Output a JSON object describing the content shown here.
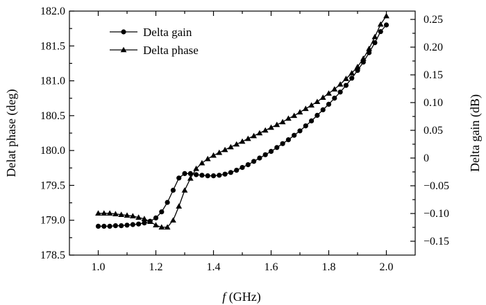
{
  "chart_data": {
    "type": "line",
    "xlabel_italic": "f",
    "xlabel_rest": " (GHz)",
    "ylabel_left": "Delat phase (deg)",
    "ylabel_right": "Delta gain (dB)",
    "xlim": [
      0.9,
      2.1
    ],
    "ylim_left": [
      178.5,
      182.0
    ],
    "ylim_right": [
      -0.175,
      0.265
    ],
    "x_ticks": [
      1.0,
      1.2,
      1.4,
      1.6,
      1.8,
      2.0
    ],
    "x_tick_labels": [
      "1.0",
      "1.2",
      "1.4",
      "1.6",
      "1.8",
      "2.0"
    ],
    "y_left_ticks": [
      178.5,
      179.0,
      179.5,
      180.0,
      180.5,
      181.0,
      181.5,
      182.0
    ],
    "y_left_tick_labels": [
      "178.5",
      "179.0",
      "179.5",
      "180.0",
      "180.5",
      "181.0",
      "181.5",
      "182.0"
    ],
    "y_right_ticks": [
      -0.15,
      -0.1,
      -0.05,
      0,
      0.05,
      0.1,
      0.15,
      0.2,
      0.25
    ],
    "y_right_tick_labels": [
      "−0.15",
      "−0.10",
      "−0.05",
      "0",
      "0.05",
      "0.10",
      "0.15",
      "0.20",
      "0.25"
    ],
    "grid": false,
    "legend_position": "top-left",
    "series": [
      {
        "name": "Delta gain",
        "marker": "circle",
        "axis": "right",
        "x": [
          1.0,
          1.02,
          1.04,
          1.06,
          1.08,
          1.1,
          1.12,
          1.14,
          1.16,
          1.18,
          1.2,
          1.22,
          1.24,
          1.26,
          1.28,
          1.3,
          1.32,
          1.34,
          1.36,
          1.38,
          1.4,
          1.42,
          1.44,
          1.46,
          1.48,
          1.5,
          1.52,
          1.54,
          1.56,
          1.58,
          1.6,
          1.62,
          1.64,
          1.66,
          1.68,
          1.7,
          1.72,
          1.74,
          1.76,
          1.78,
          1.8,
          1.82,
          1.84,
          1.86,
          1.88,
          1.9,
          1.92,
          1.94,
          1.96,
          1.98,
          2.0
        ],
        "y": [
          -0.123,
          -0.123,
          -0.123,
          -0.122,
          -0.122,
          -0.121,
          -0.12,
          -0.119,
          -0.117,
          -0.114,
          -0.108,
          -0.097,
          -0.08,
          -0.058,
          -0.036,
          -0.028,
          -0.028,
          -0.03,
          -0.031,
          -0.032,
          -0.032,
          -0.031,
          -0.029,
          -0.026,
          -0.022,
          -0.017,
          -0.012,
          -0.006,
          0.0,
          0.006,
          0.012,
          0.019,
          0.026,
          0.033,
          0.041,
          0.049,
          0.058,
          0.067,
          0.077,
          0.087,
          0.097,
          0.108,
          0.119,
          0.131,
          0.144,
          0.158,
          0.173,
          0.19,
          0.208,
          0.228,
          0.24
        ]
      },
      {
        "name": "Delta phase",
        "marker": "triangle",
        "axis": "left",
        "x": [
          1.0,
          1.02,
          1.04,
          1.06,
          1.08,
          1.1,
          1.12,
          1.14,
          1.16,
          1.18,
          1.2,
          1.22,
          1.24,
          1.26,
          1.28,
          1.3,
          1.32,
          1.34,
          1.36,
          1.38,
          1.4,
          1.42,
          1.44,
          1.46,
          1.48,
          1.5,
          1.52,
          1.54,
          1.56,
          1.58,
          1.6,
          1.62,
          1.64,
          1.66,
          1.68,
          1.7,
          1.72,
          1.74,
          1.76,
          1.78,
          1.8,
          1.82,
          1.84,
          1.86,
          1.88,
          1.9,
          1.92,
          1.94,
          1.96,
          1.98,
          2.0
        ],
        "y": [
          179.1,
          179.1,
          179.1,
          179.09,
          179.08,
          179.07,
          179.06,
          179.04,
          179.02,
          178.98,
          178.93,
          178.9,
          178.9,
          179.0,
          179.2,
          179.43,
          179.6,
          179.74,
          179.82,
          179.88,
          179.93,
          179.97,
          180.01,
          180.05,
          180.09,
          180.13,
          180.17,
          180.21,
          180.25,
          180.29,
          180.33,
          180.37,
          180.41,
          180.46,
          180.5,
          180.55,
          180.6,
          180.65,
          180.7,
          180.76,
          180.82,
          180.88,
          180.95,
          181.03,
          181.11,
          181.2,
          181.32,
          181.46,
          181.63,
          181.81,
          181.93
        ]
      }
    ]
  }
}
